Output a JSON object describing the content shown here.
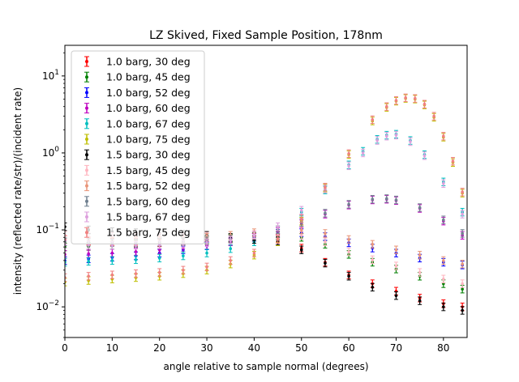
{
  "chart_data": {
    "type": "scatter",
    "title": "LZ Skived, Fixed Sample Position, 178nm",
    "xlabel": "angle relative to sample normal (degrees)",
    "ylabel": "intensity (reflected rate/str)/(incident rate)",
    "xlim": [
      0,
      85
    ],
    "ylim": [
      0.004,
      25
    ],
    "yscale": "log",
    "x_ticks": [
      "0",
      "10",
      "20",
      "30",
      "40",
      "50",
      "60",
      "70",
      "80"
    ],
    "y_ticks": [
      "10^-2",
      "10^-1",
      "10^0",
      "10^1"
    ],
    "grid": false,
    "legend_position": "upper-left",
    "series": [
      {
        "name": "1.0 barg, 30 deg",
        "color": "#ff0000",
        "x": [
          0,
          5,
          10,
          15,
          20,
          25,
          30,
          35,
          40,
          45,
          50,
          55,
          60,
          65,
          70,
          75,
          80,
          84
        ],
        "y": [
          0.075,
          0.072,
          0.07,
          0.069,
          0.068,
          0.07,
          0.072,
          0.077,
          0.08,
          0.078,
          0.058,
          0.038,
          0.026,
          0.02,
          0.016,
          0.013,
          0.011,
          0.01
        ]
      },
      {
        "name": "1.0 barg, 45 deg",
        "color": "#008000",
        "x": [
          0,
          5,
          10,
          15,
          20,
          25,
          30,
          35,
          40,
          45,
          50,
          55,
          60,
          65,
          70,
          75,
          80,
          84
        ],
        "y": [
          0.06,
          0.061,
          0.063,
          0.066,
          0.069,
          0.072,
          0.075,
          0.078,
          0.082,
          0.084,
          0.08,
          0.065,
          0.048,
          0.038,
          0.031,
          0.025,
          0.02,
          0.017
        ]
      },
      {
        "name": "1.0 barg, 52 deg",
        "color": "#0000ff",
        "x": [
          0,
          5,
          10,
          15,
          20,
          25,
          30,
          35,
          40,
          45,
          50,
          55,
          60,
          65,
          70,
          75,
          80,
          84
        ],
        "y": [
          0.04,
          0.042,
          0.044,
          0.046,
          0.05,
          0.055,
          0.062,
          0.07,
          0.08,
          0.09,
          0.092,
          0.082,
          0.068,
          0.058,
          0.05,
          0.043,
          0.038,
          0.035
        ]
      },
      {
        "name": "1.0 barg, 60 deg",
        "color": "#bf00bf",
        "x": [
          0,
          5,
          10,
          15,
          20,
          25,
          30,
          35,
          40,
          45,
          50,
          55,
          60,
          65,
          68,
          70,
          75,
          80,
          84
        ],
        "y": [
          0.048,
          0.049,
          0.05,
          0.052,
          0.055,
          0.058,
          0.063,
          0.07,
          0.08,
          0.095,
          0.12,
          0.16,
          0.21,
          0.245,
          0.25,
          0.24,
          0.19,
          0.13,
          0.085
        ]
      },
      {
        "name": "1.0 barg, 67 deg",
        "color": "#00bfbf",
        "x": [
          0,
          5,
          10,
          15,
          20,
          25,
          30,
          35,
          40,
          45,
          50,
          55,
          60,
          63,
          66,
          68,
          70,
          73,
          76,
          80,
          84
        ],
        "y": [
          0.038,
          0.039,
          0.04,
          0.041,
          0.043,
          0.046,
          0.05,
          0.057,
          0.07,
          0.1,
          0.17,
          0.33,
          0.7,
          1.05,
          1.5,
          1.7,
          1.75,
          1.45,
          0.95,
          0.42,
          0.17
        ]
      },
      {
        "name": "1.0 barg, 75 deg",
        "color": "#bfbf00",
        "x": [
          0,
          5,
          10,
          15,
          20,
          25,
          30,
          35,
          40,
          45,
          50,
          55,
          60,
          65,
          68,
          70,
          72,
          74,
          76,
          78,
          80,
          82,
          84
        ],
        "y": [
          0.021,
          0.022,
          0.023,
          0.024,
          0.025,
          0.027,
          0.03,
          0.036,
          0.047,
          0.07,
          0.13,
          0.35,
          0.95,
          2.6,
          3.9,
          4.7,
          5.1,
          5.0,
          4.2,
          2.9,
          1.6,
          0.75,
          0.3
        ]
      },
      {
        "name": "1.5 barg, 30 deg",
        "color": "#000000",
        "x": [
          0,
          5,
          10,
          15,
          20,
          25,
          30,
          35,
          40,
          45,
          50,
          55,
          60,
          65,
          70,
          75,
          80,
          84
        ],
        "y": [
          0.11,
          0.1,
          0.095,
          0.092,
          0.09,
          0.088,
          0.085,
          0.08,
          0.075,
          0.072,
          0.055,
          0.037,
          0.025,
          0.018,
          0.014,
          0.012,
          0.01,
          0.009
        ]
      },
      {
        "name": "1.5 barg, 45 deg",
        "color": "#ffb6c1",
        "x": [
          0,
          5,
          10,
          15,
          20,
          25,
          30,
          35,
          40,
          45,
          50,
          55,
          60,
          65,
          70,
          75,
          80,
          84
        ],
        "y": [
          0.085,
          0.083,
          0.082,
          0.081,
          0.08,
          0.081,
          0.083,
          0.085,
          0.087,
          0.088,
          0.085,
          0.07,
          0.052,
          0.041,
          0.034,
          0.028,
          0.023,
          0.02
        ]
      },
      {
        "name": "1.5 barg, 52 deg",
        "color": "#e9967a",
        "x": [
          0,
          5,
          10,
          15,
          20,
          25,
          30,
          35,
          40,
          45,
          50,
          55,
          60,
          65,
          70,
          75,
          80,
          84
        ],
        "y": [
          0.07,
          0.07,
          0.071,
          0.072,
          0.074,
          0.076,
          0.08,
          0.085,
          0.092,
          0.1,
          0.1,
          0.09,
          0.075,
          0.065,
          0.055,
          0.047,
          0.04,
          0.036
        ]
      },
      {
        "name": "1.5 barg, 60 deg",
        "color": "#708090",
        "x": [
          0,
          5,
          10,
          15,
          20,
          25,
          30,
          35,
          40,
          45,
          50,
          55,
          60,
          65,
          68,
          70,
          75,
          80,
          84
        ],
        "y": [
          0.07,
          0.069,
          0.068,
          0.068,
          0.069,
          0.07,
          0.072,
          0.076,
          0.085,
          0.1,
          0.125,
          0.165,
          0.215,
          0.25,
          0.255,
          0.245,
          0.195,
          0.135,
          0.09
        ]
      },
      {
        "name": "1.5 barg, 67 deg",
        "color": "#dda0dd",
        "x": [
          0,
          5,
          10,
          15,
          20,
          25,
          30,
          35,
          40,
          45,
          50,
          55,
          60,
          63,
          66,
          68,
          70,
          73,
          76,
          80,
          84
        ],
        "y": [
          0.065,
          0.064,
          0.063,
          0.063,
          0.064,
          0.065,
          0.068,
          0.073,
          0.085,
          0.11,
          0.18,
          0.34,
          0.68,
          1.0,
          1.45,
          1.65,
          1.7,
          1.4,
          0.92,
          0.4,
          0.16
        ]
      },
      {
        "name": "1.5 barg, 75 deg",
        "color": "#f08080",
        "x": [
          0,
          5,
          10,
          15,
          20,
          25,
          30,
          35,
          40,
          45,
          50,
          55,
          60,
          65,
          68,
          70,
          72,
          74,
          76,
          78,
          80,
          82,
          84
        ],
        "y": [
          0.024,
          0.025,
          0.026,
          0.027,
          0.028,
          0.03,
          0.033,
          0.04,
          0.05,
          0.075,
          0.14,
          0.36,
          0.98,
          2.7,
          4.0,
          4.8,
          5.2,
          5.1,
          4.3,
          3.0,
          1.65,
          0.78,
          0.31
        ]
      }
    ]
  }
}
